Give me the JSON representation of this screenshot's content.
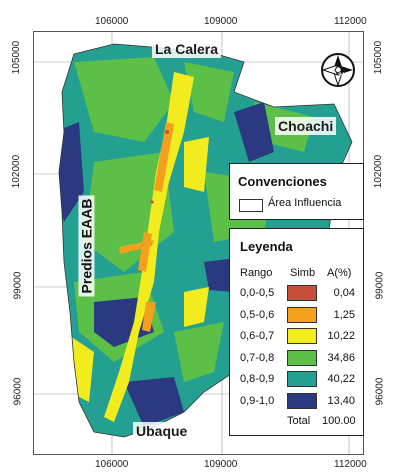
{
  "axes": {
    "x_ticks": [
      "106000",
      "109000",
      "112000"
    ],
    "y_ticks": [
      "105000",
      "102000",
      "99000",
      "96000"
    ]
  },
  "places": {
    "north": "La Calera",
    "east": "Choachi",
    "south": "Ubaque",
    "west": "Predios EAAB"
  },
  "north_arrow": {
    "letter": "N",
    "icon": "north-arrow-icon"
  },
  "conventions": {
    "title": "Convenciones",
    "item_label": "Área Influencia"
  },
  "legend": {
    "title": "Leyenda",
    "headers": {
      "range": "Rango",
      "symbol": "Simb",
      "area": "A(%)"
    },
    "rows": [
      {
        "range": "0,0-0,5",
        "color": "#c8503a",
        "area": "0,04"
      },
      {
        "range": "0,5-0,6",
        "color": "#f3a01f",
        "area": "1,25"
      },
      {
        "range": "0,6-0,7",
        "color": "#f2ec1e",
        "area": "10,22"
      },
      {
        "range": "0,7-0,8",
        "color": "#5cbf47",
        "area": "34,86"
      },
      {
        "range": "0,8-0,9",
        "color": "#23a092",
        "area": "40,22"
      },
      {
        "range": "0,9-1,0",
        "color": "#2b3a80",
        "area": "13,40"
      }
    ],
    "total_label": "Total",
    "total_value": "100.00"
  }
}
